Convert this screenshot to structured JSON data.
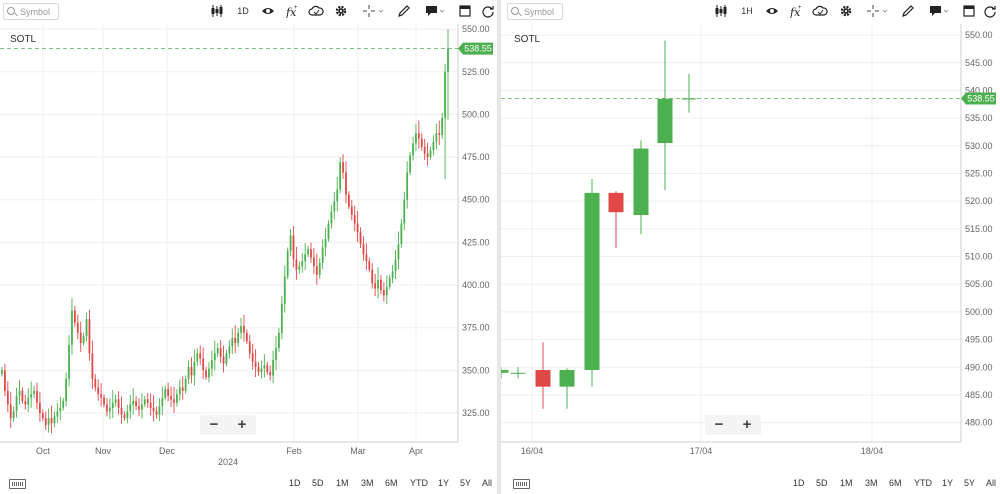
{
  "toolbar": {
    "symbol_placeholder": "Symbol",
    "icons": [
      "candles-icon",
      "eye-icon",
      "fx-icon",
      "cloud-icon",
      "gear-icon",
      "crosshair-icon",
      "pencil-icon",
      "comment-icon",
      "square-icon",
      "refresh-icon"
    ]
  },
  "panes": [
    {
      "interval_label": "1D",
      "symbol": "SOTL",
      "price_label": "538.55"
    },
    {
      "interval_label": "1H",
      "symbol": "SOTL",
      "price_label": "538.55"
    }
  ],
  "ranges": [
    "1D",
    "5D",
    "1M",
    "3M",
    "6M",
    "YTD",
    "1Y",
    "5Y",
    "All"
  ],
  "zoom": {
    "minus": "−",
    "plus": "+"
  },
  "colors": {
    "up": "#4caf50",
    "down": "#e04848",
    "label_bg": "#4caf50",
    "grid": "#efefef",
    "axis_text": "#666666"
  },
  "chart_data": [
    {
      "type": "candlestick",
      "symbol": "SOTL",
      "interval": "1D",
      "last_price": 538.55,
      "y_ticks": [
        "325.00",
        "350.00",
        "375.00",
        "400.00",
        "425.00",
        "450.00",
        "475.00",
        "500.00",
        "525.00",
        "550.00"
      ],
      "ylim": [
        308,
        553
      ],
      "x_labels": [
        "Oct",
        "Nov",
        "Dec",
        "2024",
        "Feb",
        "Mar",
        "Apr"
      ],
      "closes": [
        350,
        338,
        330,
        322,
        326,
        335,
        338,
        332,
        330,
        334,
        336,
        338,
        331,
        325,
        322,
        318,
        322,
        319,
        323,
        326,
        328,
        332,
        345,
        365,
        385,
        378,
        372,
        366,
        370,
        380,
        360,
        345,
        340,
        336,
        334,
        330,
        326,
        328,
        331,
        333,
        328,
        324,
        322,
        326,
        330,
        332,
        329,
        327,
        330,
        333,
        331,
        328,
        326,
        324,
        329,
        334,
        339,
        335,
        333,
        331,
        336,
        340,
        338,
        345,
        352,
        347,
        355,
        360,
        357,
        350,
        346,
        351,
        356,
        360,
        363,
        358,
        354,
        360,
        364,
        369,
        366,
        372,
        376,
        372,
        367,
        360,
        355,
        352,
        349,
        351,
        353,
        349,
        347,
        356,
        363,
        372,
        389,
        405,
        420,
        429,
        415,
        409,
        411,
        414,
        418,
        421,
        416,
        411,
        406,
        413,
        422,
        427,
        436,
        443,
        449,
        456,
        472,
        466,
        453,
        446,
        441,
        436,
        431,
        424,
        418,
        414,
        409,
        401,
        398,
        403,
        397,
        394,
        399,
        404,
        408,
        415,
        424,
        436,
        450,
        466,
        476,
        483,
        489,
        486,
        481,
        477,
        475,
        479,
        484,
        489,
        488,
        498,
        525,
        538.55
      ]
    },
    {
      "type": "candlestick",
      "symbol": "SOTL",
      "interval": "1H",
      "last_price": 538.55,
      "y_ticks": [
        "480.00",
        "485.00",
        "490.00",
        "495.00",
        "500.00",
        "505.00",
        "510.00",
        "515.00",
        "520.00",
        "525.00",
        "530.00",
        "535.00",
        "540.00",
        "545.00",
        "550.00"
      ],
      "ylim": [
        476.5,
        552
      ],
      "x_labels": [
        "16/04",
        "17/04",
        "18/04"
      ],
      "candles": [
        {
          "o": 489.0,
          "h": 490.0,
          "l": 488.0,
          "c": 489.5
        },
        {
          "o": 489.0,
          "h": 490.0,
          "l": 488.0,
          "c": 489.0
        },
        {
          "o": 489.5,
          "h": 494.5,
          "l": 482.5,
          "c": 486.5
        },
        {
          "o": 486.5,
          "h": 489.8,
          "l": 482.5,
          "c": 489.5
        },
        {
          "o": 489.5,
          "h": 524.0,
          "l": 486.5,
          "c": 521.5
        },
        {
          "o": 521.5,
          "h": 521.8,
          "l": 511.5,
          "c": 518.0
        },
        {
          "o": 517.5,
          "h": 531.0,
          "l": 514.0,
          "c": 529.5
        },
        {
          "o": 530.5,
          "h": 549.0,
          "l": 522.0,
          "c": 538.5
        },
        {
          "o": 538.5,
          "h": 543.0,
          "l": 536.0,
          "c": 538.55
        }
      ]
    }
  ]
}
